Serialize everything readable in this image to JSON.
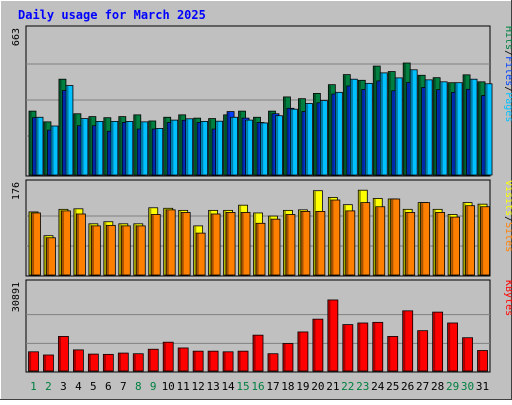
{
  "colors": {
    "background": "#c0c0c0",
    "plot_bg": "#c0c0c0",
    "title": "#0000ff",
    "grid": "#808080",
    "hits": "#008040",
    "files": "#0040ff",
    "pages": "#00c0ff",
    "visits": "#ffff00",
    "sites": "#ff8000",
    "kbytes": "#ff0000",
    "weekday_label": "#000000",
    "weekend_label": "#008040"
  },
  "chart_data": {
    "title": "Daily usage for March 2025",
    "type": "bar",
    "days": [
      "1",
      "2",
      "3",
      "4",
      "5",
      "6",
      "7",
      "8",
      "9",
      "10",
      "11",
      "12",
      "13",
      "14",
      "15",
      "16",
      "17",
      "18",
      "19",
      "20",
      "21",
      "22",
      "23",
      "24",
      "25",
      "26",
      "27",
      "28",
      "29",
      "30",
      "31"
    ],
    "weekend_days": [
      "1",
      "2",
      "8",
      "9",
      "15",
      "16",
      "22",
      "23",
      "29",
      "30"
    ],
    "panels": [
      {
        "name": "hits-files-pages",
        "ymax_label": "663",
        "ymax": 663,
        "legend": [
          "Pages",
          "/",
          "Files",
          "/",
          "Hits"
        ],
        "series": [
          {
            "name": "Hits",
            "values": [
              292,
              243,
              438,
              280,
              267,
              262,
              267,
              275,
              247,
              264,
              275,
              260,
              258,
              275,
              292,
              264,
              292,
              357,
              349,
              373,
              413,
              459,
              433,
              498,
              473,
              512,
              456,
              445,
              422,
              458,
              426
            ]
          },
          {
            "name": "Files",
            "values": [
              262,
              205,
              386,
              225,
              225,
              200,
              240,
              210,
              210,
              240,
              250,
              240,
              210,
              290,
              260,
              240,
              280,
              305,
              290,
              330,
              370,
              407,
              391,
              430,
              385,
              423,
              400,
              390,
              378,
              392,
              363
            ]
          },
          {
            "name": "Pages",
            "values": [
              264,
              224,
              409,
              258,
              245,
              245,
              245,
              243,
              213,
              251,
              257,
              245,
              246,
              264,
              251,
              238,
              271,
              301,
              327,
              340,
              378,
              438,
              419,
              467,
              444,
              481,
              435,
              426,
              422,
              438,
              417
            ]
          }
        ]
      },
      {
        "name": "visits-sites",
        "ymax_label": "176",
        "ymax": 176,
        "legend": [
          "Sites",
          "/",
          "Visits"
        ],
        "series": [
          {
            "name": "Visits",
            "values": [
              122,
              76,
              127,
              128,
              99,
              103,
              99,
              99,
              130,
              129,
              125,
              95,
              125,
              125,
              135,
              120,
              114,
              125,
              126,
              163,
              150,
              136,
              164,
              148,
              147,
              127,
              140,
              127,
              117,
              140,
              137
            ]
          },
          {
            "name": "Sites",
            "values": [
              120,
              72,
              124,
              118,
              95,
              96,
              95,
              95,
              117,
              126,
              121,
              81,
              118,
              121,
              121,
              100,
              108,
              117,
              123,
              123,
              145,
              124,
              140,
              132,
              147,
              121,
              140,
              121,
              112,
              134,
              132
            ]
          }
        ]
      },
      {
        "name": "kbytes",
        "ymax_label": "30891",
        "ymax": 30891,
        "legend": [
          "KBytes"
        ],
        "series": [
          {
            "name": "KBytes",
            "values": [
              6818,
              5682,
              12273,
              7498,
              6000,
              5909,
              6363,
              6136,
              7727,
              10227,
              8181,
              7045,
              7045,
              6818,
              7045,
              12727,
              6136,
              9772,
              13864,
              18409,
              25226,
              16477,
              17046,
              17273,
              12273,
              21364,
              14318,
              20909,
              17046,
              11819,
              7272
            ]
          }
        ]
      }
    ]
  }
}
